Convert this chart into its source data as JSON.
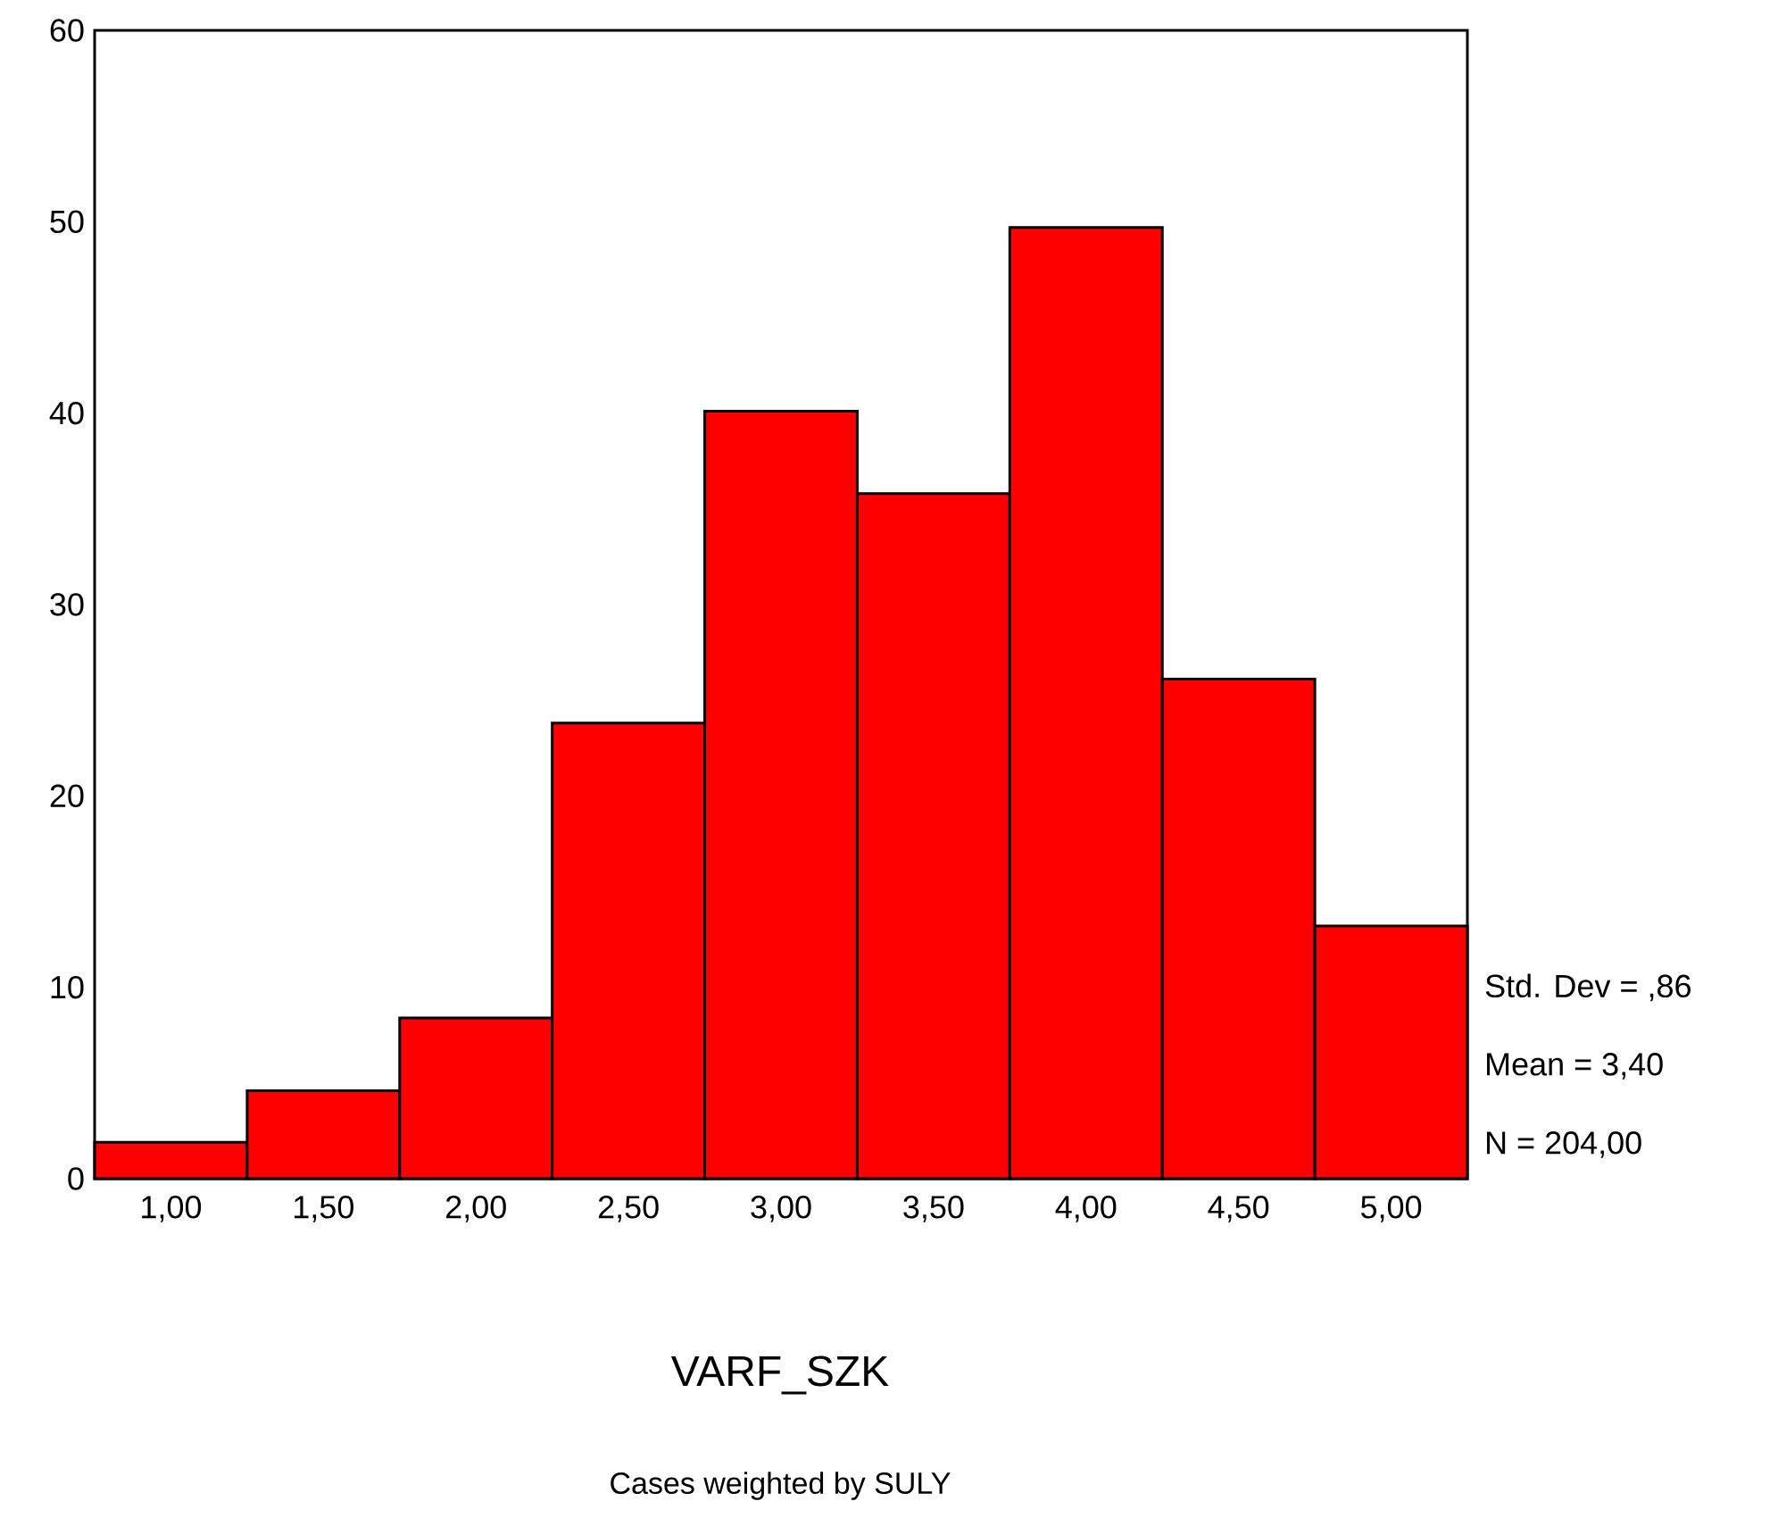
{
  "chart_data": {
    "type": "histogram",
    "xlabel": "VARF_SZK",
    "bins": [
      0.75,
      1.25,
      1.75,
      2.25,
      2.75,
      3.25,
      3.75,
      4.25,
      4.75,
      5.25
    ],
    "values": [
      1.9,
      4.6,
      8.4,
      23.8,
      40.1,
      35.8,
      49.7,
      26.1,
      13.2
    ],
    "color": "#ff0000",
    "xlim": [
      0.75,
      5.25
    ],
    "xticks": [
      {
        "value": 1,
        "label": "1,00"
      },
      {
        "value": 1.5,
        "label": "1,50"
      },
      {
        "value": 2,
        "label": "2,00"
      },
      {
        "value": 2.5,
        "label": "2,50"
      },
      {
        "value": 3,
        "label": "3,00"
      },
      {
        "value": 3.5,
        "label": "3,50"
      },
      {
        "value": 4,
        "label": "4,00"
      },
      {
        "value": 4.5,
        "label": "4,50"
      },
      {
        "value": 5,
        "label": "5,00"
      }
    ],
    "ylim": [
      0,
      60
    ],
    "yticks": [
      0,
      10,
      20,
      30,
      40,
      50,
      60
    ],
    "annotations": [
      "Std. Dev = ,86",
      "Mean = 3,40",
      "N = 204,00",
      "Cases weighted by SULY"
    ]
  }
}
